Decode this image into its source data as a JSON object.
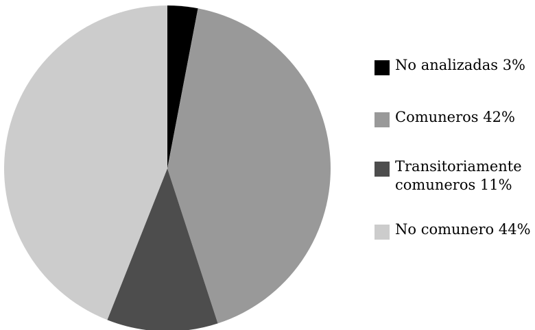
{
  "chart_data": {
    "type": "pie",
    "title": "",
    "slices": [
      {
        "label": "No analizadas 3%",
        "value": 3,
        "color": "#000000"
      },
      {
        "label": "Comuneros 42%",
        "value": 42,
        "color": "#999999"
      },
      {
        "label": "Transitoriamente\ncomuneros  11%",
        "value": 11,
        "color": "#4d4d4d"
      },
      {
        "label": "No comunero 44%",
        "value": 44,
        "color": "#cccccc"
      }
    ],
    "start_angle": "12 o'clock",
    "direction": "clockwise",
    "legend_position": "right"
  }
}
